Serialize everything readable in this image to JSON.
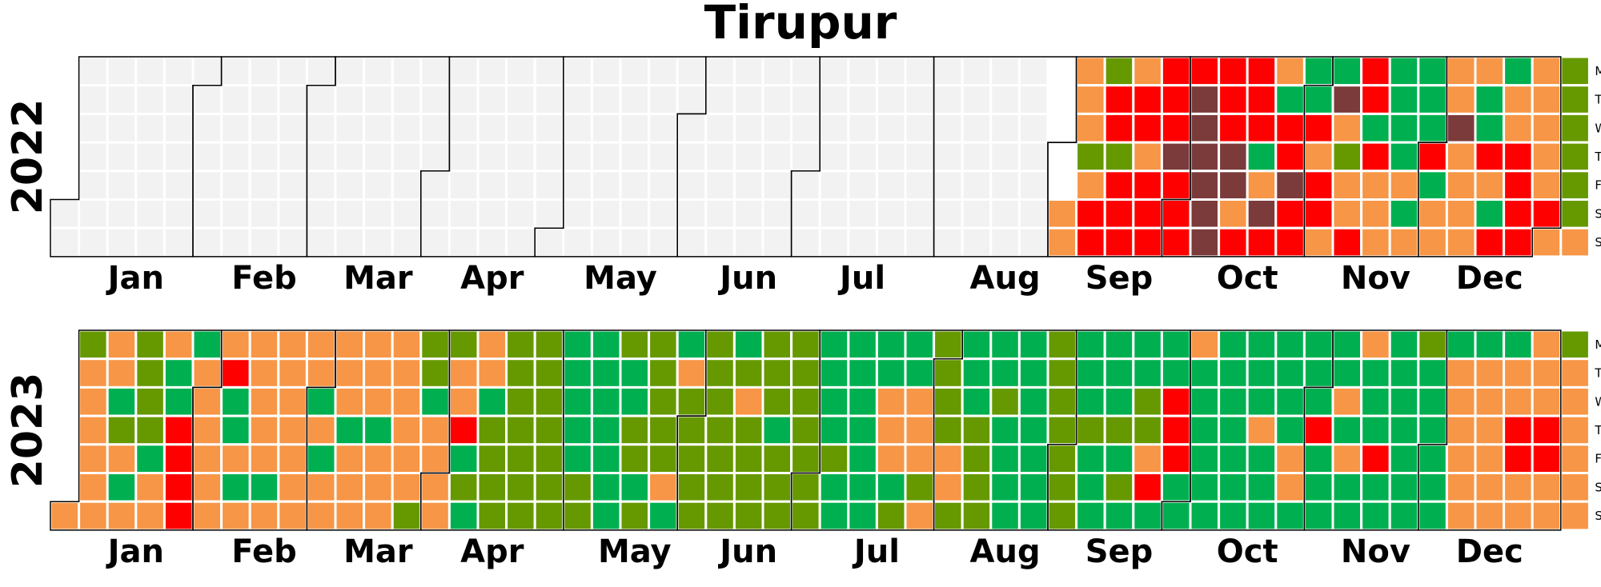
{
  "chart_data": {
    "type": "heatmap",
    "title": "Tirupur",
    "weekday_labels": [
      "Mon",
      "Tue",
      "Wed",
      "Thu",
      "Fri",
      "Sat",
      "Sun"
    ],
    "month_labels": [
      "Jan",
      "Feb",
      "Mar",
      "Apr",
      "May",
      "Jun",
      "Jul",
      "Aug",
      "Sep",
      "Oct",
      "Nov",
      "Dec"
    ],
    "legend": "none",
    "grid": false,
    "colors": {
      "0": "#f2f2f2",
      "1": "#00b050",
      "2": "#669900",
      "3": "#f79646",
      "4": "#ff0000",
      "5": "#7b3b3b"
    },
    "years": [
      {
        "year": "2022",
        "first_weekday": 5,
        "weeks": [
          "-----00",
          "0000000",
          "0000000",
          "0000000",
          "0000000",
          "0000000",
          "0000000",
          "0000000",
          "0000000",
          "0000000",
          "0000000",
          "0000000",
          "0000000",
          "0000000",
          "0000000",
          "0000000",
          "0000000",
          "0000000",
          "0000000",
          "0000000",
          "0000000",
          "0000000",
          "0000000",
          "0000000",
          "0000000",
          "0000000",
          "0000000",
          "0000000",
          "0000000",
          "0000000",
          "0000000",
          "0000000",
          "0000000",
          "0000000",
          "0000000",
          "-----33",
          "3332344",
          "2442444",
          "3443444",
          "4445444",
          "4555555",
          "4445534",
          "4441354",
          "3144544",
          "1143443",
          "1532334",
          "4414333",
          "1111313",
          "1114133",
          "3353333",
          "3114314",
          "1334444",
          "3333343",
          "2222223"
        ]
      },
      {
        "year": "2023",
        "first_weekday": 6,
        "weeks": [
          "------3",
          "2333333",
          "3312313",
          "2222133",
          "3114444",
          "1333333",
          "3411313",
          "3333313",
          "3333333",
          "3313133",
          "3331333",
          "3331333",
          "3333332",
          "2213333",
          "2334121",
          "3312222",
          "2222222",
          "2222222",
          "1111122",
          "1111111",
          "2112212",
          "2222231",
          "1322222",
          "2222222",
          "1232222",
          "2221222",
          "2222222",
          "1111211",
          "1111111",
          "1133312",
          "1133323",
          "2222332",
          "1112222",
          "1121111",
          "1111111",
          "2222222",
          "1112111",
          "1112121",
          "1122341",
          "1144411",
          "3111111",
          "1111111",
          "1113111",
          "1111331",
          "1114111",
          "1131311",
          "3111411",
          "1111111",
          "2111111",
          "1333333",
          "1333333",
          "1334433",
          "3334433",
          "2333333"
        ]
      }
    ]
  }
}
